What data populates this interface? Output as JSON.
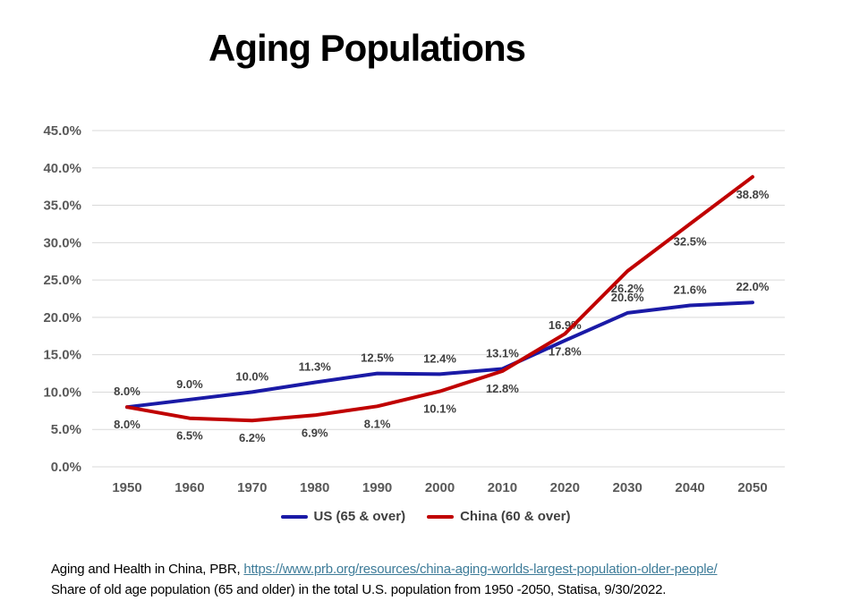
{
  "title": "Aging Populations",
  "chart_data": {
    "type": "line",
    "title": "Aging Populations",
    "categories": [
      "1950",
      "1960",
      "1970",
      "1980",
      "1990",
      "2000",
      "2010",
      "2020",
      "2030",
      "2040",
      "2050"
    ],
    "series": [
      {
        "name": "US (65 & over)",
        "color": "#1a1aa6",
        "values": [
          8.0,
          9.0,
          10.0,
          11.3,
          12.5,
          12.4,
          13.1,
          16.9,
          20.6,
          21.6,
          22.0
        ],
        "labels": [
          "8.0%",
          "9.0%",
          "10.0%",
          "11.3%",
          "12.5%",
          "12.4%",
          "13.1%",
          "16.9%",
          "20.6%",
          "21.6%",
          "22.0%"
        ],
        "label_position": "above"
      },
      {
        "name": "China (60 & over)",
        "color": "#c00000",
        "values": [
          8.0,
          6.5,
          6.2,
          6.9,
          8.1,
          10.1,
          12.8,
          17.8,
          26.2,
          32.5,
          38.8
        ],
        "labels": [
          "8.0%",
          "6.5%",
          "6.2%",
          "6.9%",
          "8.1%",
          "10.1%",
          "12.8%",
          "17.8%",
          "26.2%",
          "32.5%",
          "38.8%"
        ],
        "label_position": "below"
      }
    ],
    "ylim": [
      0,
      45
    ],
    "ytick_step": 5,
    "ytick_labels": [
      "0.0%",
      "5.0%",
      "10.0%",
      "15.0%",
      "20.0%",
      "25.0%",
      "30.0%",
      "35.0%",
      "40.0%",
      "45.0%"
    ],
    "grid": "horizontal",
    "gridline_color": "#d9d9d9",
    "tick_label_color": "#595959",
    "data_label_color": "#404040",
    "legend_position": "bottom"
  },
  "footer": {
    "line1_prefix": "Aging and Health in China, PBR, ",
    "line1_link": "https://www.prb.org/resources/china-aging-worlds-largest-population-older-people/",
    "line2": "Share of old age population (65 and older) in the total U.S. population from 1950 -2050, Statisa, 9/30/2022."
  }
}
